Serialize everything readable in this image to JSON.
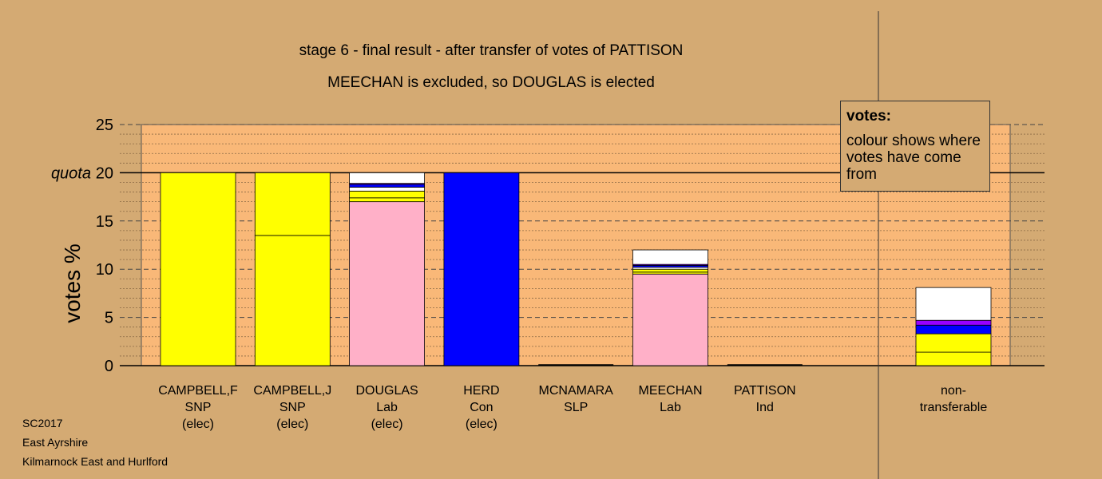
{
  "title_line1": "stage 6 - final result - after transfer of votes of PATTISON",
  "title_line2": "MEECHAN is excluded, so DOUGLAS is elected",
  "legend": {
    "title": "votes:",
    "text": "colour shows where votes have come from"
  },
  "footer": {
    "line1": "SC2017",
    "line2": "East Ayrshire",
    "line3": "Kilmarnock East and Hurlford"
  },
  "colors": {
    "background": "#d4aa73",
    "plot_bg": "#f9b878",
    "snp": "#ffff00",
    "lab": "#ffb0c8",
    "con": "#0000ff",
    "other": "#9900ff",
    "white": "#ffffff"
  },
  "chart_data": {
    "type": "bar",
    "stacked": true,
    "ylabel": "votes %",
    "ylim": [
      0,
      25
    ],
    "yticks": [
      0,
      5,
      10,
      15,
      20,
      25
    ],
    "quota": 20,
    "quota_label": "quota",
    "candidates": [
      {
        "name": "CAMPBELL,F",
        "party": "SNP",
        "status": "(elec)",
        "segments": [
          {
            "color": "#ffff00",
            "value": 20
          }
        ]
      },
      {
        "name": "CAMPBELL,J",
        "party": "SNP",
        "status": "(elec)",
        "segments": [
          {
            "color": "#ffff00",
            "value": 13.5
          },
          {
            "color": "#ffff00",
            "value": 6.5
          }
        ]
      },
      {
        "name": "DOUGLAS",
        "party": "Lab",
        "status": "(elec)",
        "segments": [
          {
            "color": "#ffb0c8",
            "value": 17.0
          },
          {
            "color": "#ffff00",
            "value": 0.4
          },
          {
            "color": "#ffff00",
            "value": 0.7
          },
          {
            "color": "#ffffff",
            "value": 0.4
          },
          {
            "color": "#0000ff",
            "value": 0.3
          },
          {
            "color": "#9900ff",
            "value": 0.1
          },
          {
            "color": "#ffffff",
            "value": 1.1
          }
        ]
      },
      {
        "name": "HERD",
        "party": "Con",
        "status": "(elec)",
        "segments": [
          {
            "color": "#0000ff",
            "value": 20
          }
        ]
      },
      {
        "name": "MCNAMARA",
        "party": "SLP",
        "status": "",
        "segments": []
      },
      {
        "name": "MEECHAN",
        "party": "Lab",
        "status": "",
        "segments": [
          {
            "color": "#ffb0c8",
            "value": 9.5
          },
          {
            "color": "#ffff00",
            "value": 0.2
          },
          {
            "color": "#ffff00",
            "value": 0.3
          },
          {
            "color": "#ffffff",
            "value": 0.2
          },
          {
            "color": "#0000ff",
            "value": 0.2
          },
          {
            "color": "#9900ff",
            "value": 0.1
          },
          {
            "color": "#ffffff",
            "value": 1.5
          }
        ]
      },
      {
        "name": "PATTISON",
        "party": "Ind",
        "status": "",
        "segments": []
      }
    ],
    "nontransferable": {
      "label_line1": "non-",
      "label_line2": "transferable",
      "segments": [
        {
          "color": "#ffff00",
          "value": 1.4
        },
        {
          "color": "#ffff00",
          "value": 1.9
        },
        {
          "color": "#0000ff",
          "value": 0.9
        },
        {
          "color": "#9900ff",
          "value": 0.5
        },
        {
          "color": "#ffffff",
          "value": 3.4
        }
      ]
    }
  }
}
